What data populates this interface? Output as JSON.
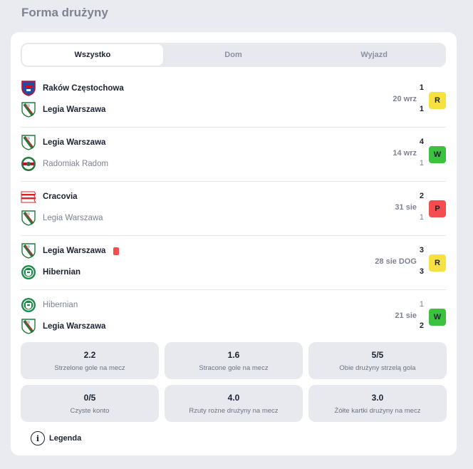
{
  "title": "Forma drużyny",
  "tabs": [
    {
      "label": "Wszystko"
    },
    {
      "label": "Dom"
    },
    {
      "label": "Wyjazd"
    }
  ],
  "matches": [
    {
      "home": {
        "name": "Raków Częstochowa",
        "crest": "rakow-crest-icon",
        "score": "1"
      },
      "away": {
        "name": "Legia Warszawa",
        "crest": "legia-crest-icon",
        "score": "1"
      },
      "date": "20 wrz",
      "result": "R"
    },
    {
      "home": {
        "name": "Legia Warszawa",
        "crest": "legia-crest-icon",
        "score": "4"
      },
      "away": {
        "name": "Radomiak Radom",
        "crest": "radomiak-crest-icon",
        "score": "1"
      },
      "date": "14 wrz",
      "result": "W"
    },
    {
      "home": {
        "name": "Cracovia",
        "crest": "cracovia-crest-icon",
        "score": "2"
      },
      "away": {
        "name": "Legia Warszawa",
        "crest": "legia-crest-icon",
        "score": "1"
      },
      "date": "31 sie",
      "result": "P"
    },
    {
      "home": {
        "name": "Legia Warszawa",
        "crest": "legia-crest-icon",
        "score": "3"
      },
      "away": {
        "name": "Hibernian",
        "crest": "hibernian-crest-icon",
        "score": "3"
      },
      "date": "28 sie DOG",
      "result": "R"
    },
    {
      "home": {
        "name": "Hibernian",
        "crest": "hibernian-crest-icon",
        "score": "1"
      },
      "away": {
        "name": "Legia Warszawa",
        "crest": "legia-crest-icon",
        "score": "2"
      },
      "date": "21 sie",
      "result": "W"
    }
  ],
  "stats": [
    {
      "value": "2.2",
      "label": "Strzelone gole na mecz"
    },
    {
      "value": "1.6",
      "label": "Stracone gole na mecz"
    },
    {
      "value": "5/5",
      "label": "Obie drużyny strzelą gola"
    },
    {
      "value": "0/5",
      "label": "Czyste konto"
    },
    {
      "value": "4.0",
      "label": "Rzuty rożne drużyny na mecz"
    },
    {
      "value": "3.0",
      "label": "Żółte kartki drużyny na mecz"
    }
  ],
  "legend": {
    "icon_letter": "i",
    "label": "Legenda"
  },
  "colors": {
    "draw": "#f7e140",
    "win": "#3cc23f",
    "loss": "#f24e4e",
    "red_card": "#f24e4e"
  }
}
